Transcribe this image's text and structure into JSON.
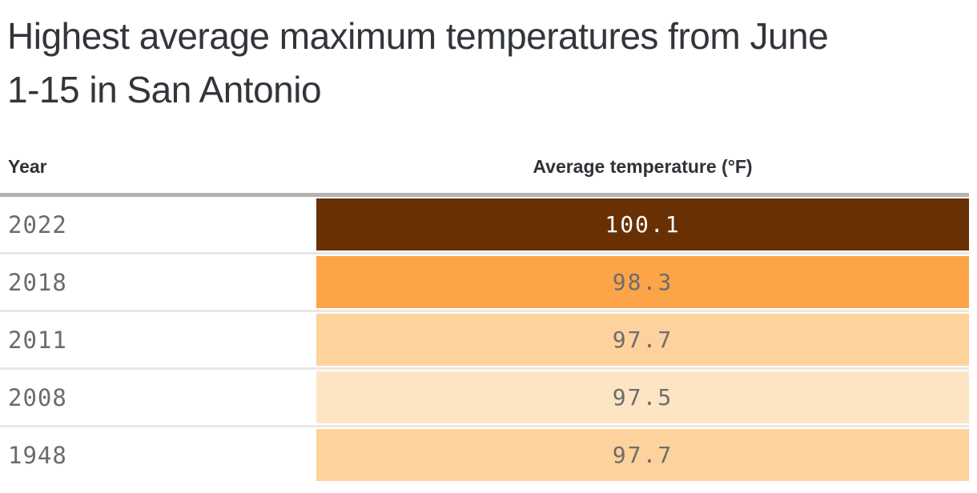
{
  "title": {
    "full": "Highest average maximum temperatures from June 1-15 in San Antonio",
    "line1": "Highest average maximum temperatures from June",
    "line2": "1-15 in San Antonio"
  },
  "table": {
    "columns": [
      {
        "label": "Year"
      },
      {
        "label": "Average temperature (°F)"
      }
    ],
    "rows": [
      {
        "year": "2022",
        "value": "100.1",
        "bar_color": "#693103",
        "text_color": "#ffffff"
      },
      {
        "year": "2018",
        "value": "98.3",
        "bar_color": "#fca448",
        "text_color": "#6d6d6d"
      },
      {
        "year": "2011",
        "value": "97.7",
        "bar_color": "#fdd29d",
        "text_color": "#6d6d6d"
      },
      {
        "year": "2008",
        "value": "97.5",
        "bar_color": "#fde5c4",
        "text_color": "#6d6d6d"
      },
      {
        "year": "1948",
        "value": "97.7",
        "bar_color": "#fdd29d",
        "text_color": "#6d6d6d"
      }
    ]
  },
  "colors": {
    "title_text": "#32353a",
    "header_text": "#2f3237",
    "year_text": "#6b6b6b",
    "header_rule": "#b3b3b2",
    "row_separator": "#e8e7e5",
    "background": "#ffffff"
  },
  "chart_data": {
    "type": "bar",
    "title": "Highest average maximum temperatures from June 1-15 in San Antonio",
    "categories": [
      "2022",
      "2018",
      "2011",
      "2008",
      "1948"
    ],
    "values": [
      100.1,
      98.3,
      97.7,
      97.5,
      97.7
    ],
    "xlabel": "Average temperature (°F)",
    "ylabel": "Year",
    "legend": false,
    "orientation": "horizontal",
    "layout_hint": "equal-width full-span bars; magnitude encoded by fill color (darker/warmer = hotter); value label centered in each bar",
    "bar_colors": [
      "#693103",
      "#fca448",
      "#fdd29d",
      "#fde5c4",
      "#fdd29d"
    ]
  }
}
